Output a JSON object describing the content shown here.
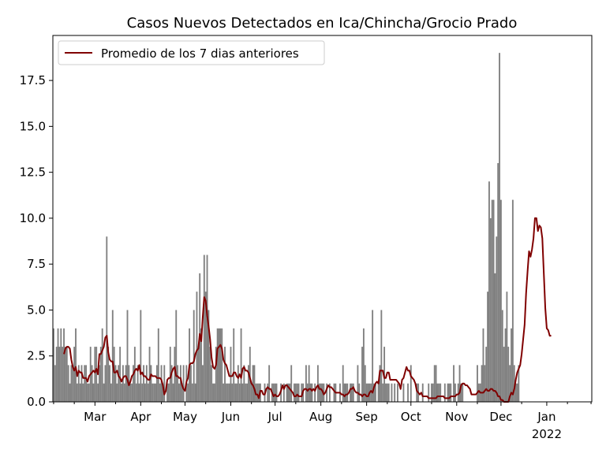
{
  "chart_data": {
    "type": "bar",
    "title": "Casos Nuevos Detectados en Ica/Chincha/Grocio Prado",
    "xlabel": "",
    "ylabel": "",
    "x_start": "2021-02-01",
    "x_end": "2022-01-31",
    "ylim": [
      0,
      19.95
    ],
    "y_ticks": [
      0.0,
      2.5,
      5.0,
      7.5,
      10.0,
      12.5,
      15.0,
      17.5
    ],
    "y_tick_labels": [
      "0.0",
      "2.5",
      "5.0",
      "7.5",
      "10.0",
      "12.5",
      "15.0",
      "17.5"
    ],
    "x_ticks": [
      {
        "date": "2021-03-01",
        "label": "Mar"
      },
      {
        "date": "2021-04-01",
        "label": "Apr"
      },
      {
        "date": "2021-05-01",
        "label": "May"
      },
      {
        "date": "2021-06-01",
        "label": "Jun"
      },
      {
        "date": "2021-07-01",
        "label": "Jul"
      },
      {
        "date": "2021-08-01",
        "label": "Aug"
      },
      {
        "date": "2021-09-01",
        "label": "Sep"
      },
      {
        "date": "2021-10-01",
        "label": "Oct"
      },
      {
        "date": "2021-11-01",
        "label": "Nov"
      },
      {
        "date": "2021-12-01",
        "label": "Dec"
      },
      {
        "date": "2022-01-01",
        "label": "Jan",
        "sublabel": "2022"
      }
    ],
    "x_minor_tick_dates": [
      "2021-02-01",
      "2021-02-15",
      "2021-03-15",
      "2021-04-15",
      "2021-05-15",
      "2021-06-15",
      "2021-07-15",
      "2021-08-15",
      "2021-09-15",
      "2021-10-15",
      "2021-11-15",
      "2021-12-15",
      "2022-01-15",
      "2022-01-31"
    ],
    "legend": {
      "label": "Promedio de los 7 dias anteriores",
      "position": "top-left"
    },
    "grid": false,
    "series": [
      {
        "kind": "bar",
        "color": "#808080",
        "values": [
          4,
          2,
          3,
          4,
          3,
          4,
          3,
          4,
          3,
          3,
          2,
          1,
          2,
          2,
          3,
          4,
          1,
          2,
          1,
          2,
          1,
          2,
          2,
          1,
          1,
          3,
          2,
          1,
          3,
          3,
          1,
          2,
          3,
          4,
          1,
          2,
          9,
          3,
          2,
          1,
          5,
          3,
          2,
          1,
          2,
          3,
          1,
          2,
          1,
          2,
          5,
          2,
          1,
          1,
          2,
          3,
          1,
          2,
          1,
          5,
          1,
          2,
          1,
          2,
          1,
          3,
          2,
          1,
          1,
          1,
          2,
          4,
          1,
          2,
          1,
          2,
          0,
          1,
          1,
          3,
          2,
          1,
          3,
          5,
          2,
          1,
          2,
          1,
          2,
          0,
          2,
          1,
          4,
          2,
          1,
          5,
          1,
          6,
          3,
          7,
          4,
          2,
          8,
          6,
          8,
          5,
          3,
          2,
          1,
          1,
          3,
          4,
          4,
          4,
          4,
          1,
          3,
          1,
          1,
          1,
          3,
          1,
          4,
          1,
          1,
          2,
          1,
          4,
          1,
          2,
          1,
          1,
          2,
          3,
          1,
          2,
          2,
          1,
          1,
          1,
          1,
          0,
          0,
          1,
          0,
          1,
          2,
          0,
          1,
          1,
          1,
          1,
          0,
          0,
          1,
          0,
          1,
          0,
          1,
          1,
          1,
          2,
          0,
          1,
          1,
          1,
          1,
          0,
          1,
          1,
          0,
          2,
          1,
          2,
          1,
          1,
          0,
          1,
          0,
          2,
          1,
          1,
          1,
          1,
          0,
          1,
          0,
          1,
          0,
          0,
          1,
          1,
          0,
          0,
          1,
          0,
          2,
          1,
          1,
          1,
          0,
          1,
          1,
          1,
          0,
          0,
          2,
          1,
          0,
          3,
          4,
          2,
          1,
          1,
          1,
          1,
          5,
          1,
          1,
          0,
          1,
          2,
          5,
          1,
          3,
          1,
          1,
          1,
          0,
          1,
          0,
          1,
          0,
          1,
          0,
          0,
          0,
          1,
          0,
          0,
          1,
          0,
          2,
          0,
          0,
          0,
          1,
          1,
          0,
          0,
          1,
          0,
          0,
          0,
          1,
          0,
          1,
          1,
          2,
          2,
          1,
          1,
          1,
          0,
          0,
          1,
          0,
          1,
          1,
          1,
          0,
          2,
          1,
          0,
          1,
          2,
          1,
          1,
          0,
          0,
          0,
          0,
          0,
          0,
          0,
          0,
          0,
          2,
          1,
          1,
          2,
          4,
          2,
          3,
          6,
          12,
          10,
          11,
          11,
          7,
          9,
          13,
          19,
          11,
          5,
          3,
          4,
          6,
          3,
          2,
          4,
          11,
          2,
          1,
          1,
          2
        ]
      },
      {
        "kind": "line",
        "name": "Promedio de los 7 dias anteriores",
        "color": "#800000",
        "start_index": 7,
        "values": [
          2.6,
          2.9,
          3.0,
          3.0,
          2.9,
          2.3,
          1.9,
          1.7,
          1.9,
          1.4,
          1.7,
          1.6,
          1.6,
          1.3,
          1.3,
          1.3,
          1.1,
          1.4,
          1.5,
          1.6,
          1.7,
          1.6,
          1.8,
          1.5,
          2.6,
          2.6,
          2.8,
          3.0,
          3.5,
          3.6,
          2.7,
          2.3,
          2.2,
          2.2,
          1.6,
          1.6,
          1.7,
          1.4,
          1.3,
          1.1,
          1.3,
          1.4,
          1.4,
          1.2,
          0.9,
          1.1,
          1.4,
          1.5,
          1.7,
          1.8,
          1.7,
          2.0,
          1.5,
          1.6,
          1.4,
          1.4,
          1.3,
          1.2,
          1.2,
          1.5,
          1.4,
          1.4,
          1.4,
          1.3,
          1.3,
          1.3,
          1.2,
          0.9,
          0.4,
          0.6,
          1.2,
          1.3,
          1.3,
          1.6,
          1.8,
          1.9,
          1.4,
          1.4,
          1.3,
          1.3,
          0.9,
          0.7,
          0.6,
          1.1,
          1.3,
          2.0,
          2.1,
          2.1,
          2.2,
          2.6,
          2.8,
          2.9,
          3.7,
          3.3,
          4.6,
          5.7,
          5.5,
          4.7,
          4.1,
          3.4,
          2.4,
          1.9,
          1.8,
          2.0,
          2.9,
          3.0,
          3.1,
          2.9,
          2.3,
          2.1,
          2.0,
          1.7,
          1.4,
          1.4,
          1.4,
          1.6,
          1.6,
          1.4,
          1.3,
          1.5,
          1.3,
          1.8,
          1.9,
          1.7,
          1.7,
          1.6,
          1.3,
          1.0,
          0.9,
          0.7,
          0.4,
          0.4,
          0.2,
          0.6,
          0.6,
          0.4,
          0.4,
          0.7,
          0.8,
          0.7,
          0.7,
          0.5,
          0.3,
          0.4,
          0.3,
          0.3,
          0.4,
          0.6,
          0.9,
          0.7,
          0.9,
          0.9,
          0.8,
          0.7,
          0.6,
          0.5,
          0.3,
          0.3,
          0.4,
          0.3,
          0.3,
          0.3,
          0.6,
          0.7,
          0.7,
          0.6,
          0.7,
          0.7,
          0.6,
          0.7,
          0.6,
          0.8,
          0.9,
          0.7,
          0.7,
          0.6,
          0.4,
          0.5,
          0.7,
          0.9,
          0.8,
          0.8,
          0.7,
          0.6,
          0.5,
          0.5,
          0.5,
          0.5,
          0.4,
          0.4,
          0.3,
          0.4,
          0.4,
          0.5,
          0.7,
          0.7,
          0.8,
          0.6,
          0.5,
          0.5,
          0.4,
          0.4,
          0.3,
          0.4,
          0.4,
          0.3,
          0.3,
          0.5,
          0.6,
          0.5,
          0.8,
          1.0,
          1.1,
          1.0,
          1.7,
          1.7,
          1.7,
          1.3,
          1.3,
          1.6,
          1.6,
          1.2,
          1.2,
          1.2,
          1.2,
          1.2,
          1.1,
          1.0,
          0.7,
          1.2,
          1.3,
          1.6,
          1.9,
          1.7,
          1.7,
          1.4,
          1.3,
          1.2,
          1.0,
          0.6,
          0.5,
          0.4,
          0.5,
          0.3,
          0.3,
          0.3,
          0.3,
          0.2,
          0.2,
          0.2,
          0.2,
          0.2,
          0.2,
          0.3,
          0.3,
          0.3,
          0.3,
          0.3,
          0.2,
          0.2,
          0.2,
          0.2,
          0.3,
          0.3,
          0.3,
          0.3,
          0.4,
          0.4,
          0.5,
          0.9,
          1.0,
          1.0,
          0.9,
          0.9,
          0.8,
          0.7,
          0.4,
          0.4,
          0.4,
          0.4,
          0.5,
          0.6,
          0.5,
          0.5,
          0.5,
          0.6,
          0.7,
          0.6,
          0.6,
          0.7,
          0.7,
          0.6,
          0.6,
          0.5,
          0.3,
          0.3,
          0.1,
          0.1,
          0.0,
          0.0,
          0.0,
          0.0,
          0.3,
          0.5,
          0.4,
          0.7,
          1.2,
          1.6,
          1.8,
          2.0,
          2.6,
          3.4,
          4.2,
          5.9,
          7.1,
          8.2,
          7.9,
          8.3,
          8.9,
          10.0,
          10.0,
          9.3,
          9.6,
          9.5,
          8.9,
          7.0,
          5.1,
          4.0,
          3.9,
          3.6,
          3.6
        ]
      }
    ]
  }
}
